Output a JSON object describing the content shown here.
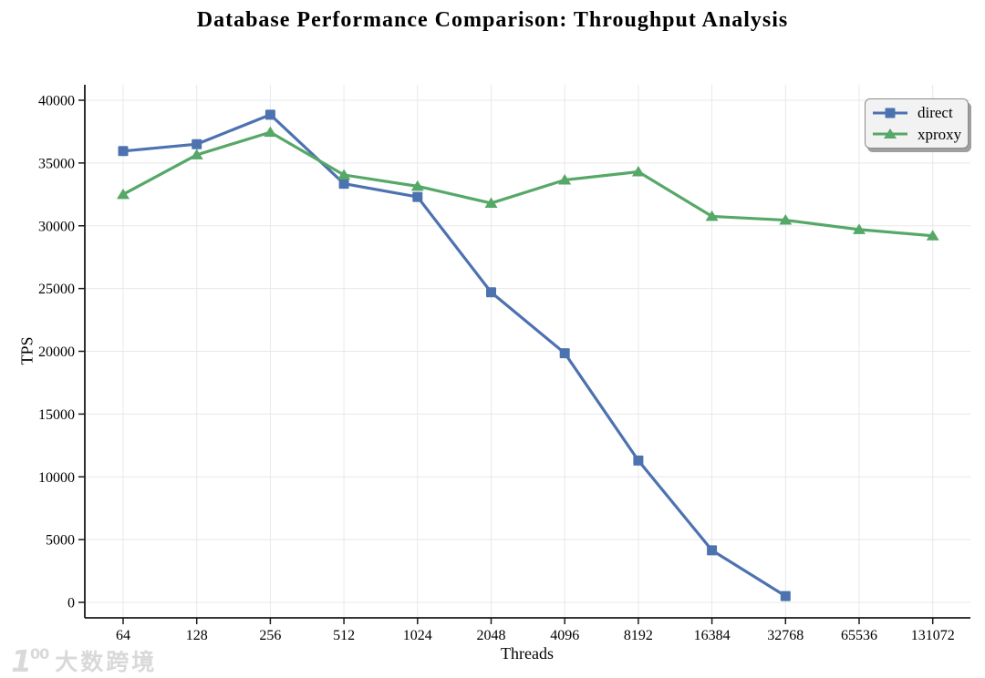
{
  "chart_data": {
    "type": "line",
    "title": "Database Performance Comparison: Throughput Analysis",
    "xlabel": "Threads",
    "ylabel": "TPS",
    "categories": [
      "64",
      "128",
      "256",
      "512",
      "1024",
      "2048",
      "4096",
      "8192",
      "16384",
      "32768",
      "65536",
      "131072"
    ],
    "yticks": [
      0,
      5000,
      10000,
      15000,
      20000,
      25000,
      30000,
      35000,
      40000
    ],
    "ylim": [
      0,
      40000
    ],
    "grid": true,
    "legend_position": "upper right",
    "series": [
      {
        "name": "direct",
        "color": "#4C72B0",
        "marker": "square",
        "values": [
          35950,
          36500,
          38850,
          33350,
          32300,
          24700,
          19850,
          11300,
          4150,
          500,
          null,
          null
        ]
      },
      {
        "name": "xproxy",
        "color": "#55A868",
        "marker": "triangle",
        "values": [
          32500,
          35650,
          37450,
          34050,
          33150,
          31800,
          33650,
          34300,
          30750,
          30450,
          29700,
          29200
        ]
      }
    ],
    "axis_color": "#1a1a1a",
    "grid_color": "#e8e8e8"
  },
  "watermark": {
    "logo_one": "1",
    "logo_zeros": "00",
    "text": "大数跨境"
  }
}
